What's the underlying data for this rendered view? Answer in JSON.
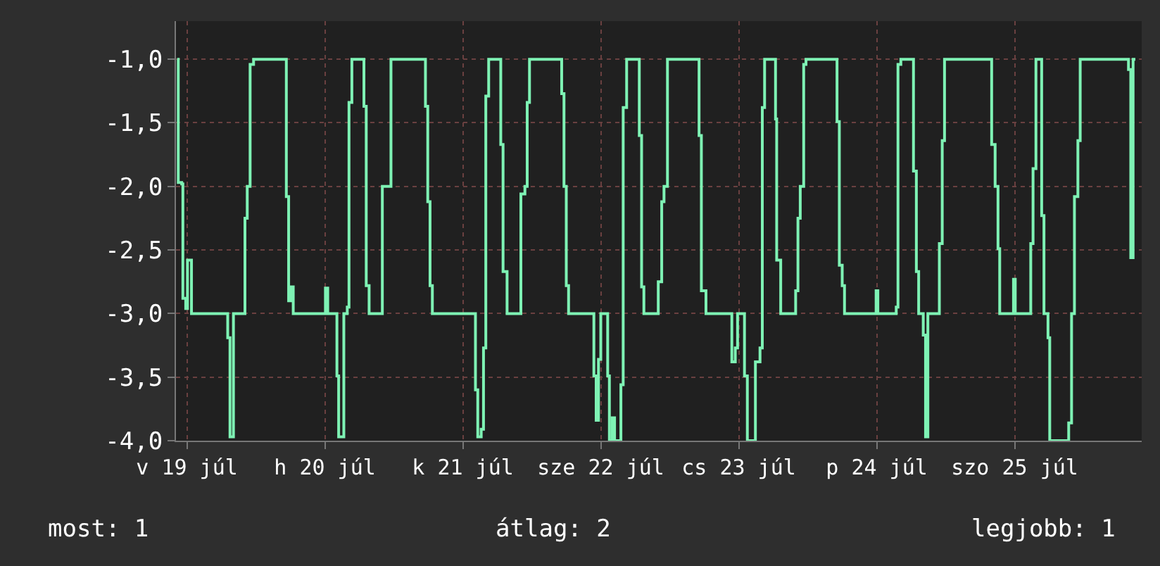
{
  "chart_data": {
    "type": "step",
    "color": "#7ef2b4",
    "line_style": "solid",
    "marker": "none",
    "grid": true,
    "legend": false,
    "x": [
      "--07-19T10:18",
      "--07-19T10:30",
      "--07-19T11:06",
      "--07-19T11:18",
      "--07-19T11:48",
      "--07-19T12:06",
      "--07-19T12:36",
      "--07-19T12:48",
      "--07-19T18:42",
      "--07-19T19:06",
      "--07-19T19:30",
      "--07-19T20:06",
      "--07-19T21:48",
      "--07-19T22:06",
      "--07-19T22:30",
      "--07-19T23:00",
      "--07-19T23:36",
      "--07-20T04:54",
      "--07-20T05:18",
      "--07-20T05:42",
      "--07-20T06:06",
      "--07-20T06:30",
      "--07-20T11:42",
      "--07-20T12:06",
      "--07-20T12:30",
      "--07-20T13:42",
      "--07-20T14:06",
      "--07-20T14:24",
      "--07-20T15:06",
      "--07-20T15:18",
      "--07-20T15:54",
      "--07-20T16:12",
      "--07-20T16:42",
      "--07-20T18:18",
      "--07-20T18:48",
      "--07-20T19:12",
      "--07-20T19:42",
      "--07-20T21:24",
      "--07-20T22:00",
      "--07-20T22:48",
      "--07-20T23:30",
      "--07-21T05:06",
      "--07-21T05:30",
      "--07-21T05:54",
      "--07-21T06:18",
      "--07-21T06:42",
      "--07-21T13:48",
      "--07-21T14:12",
      "--07-21T14:36",
      "--07-21T15:12",
      "--07-21T15:36",
      "--07-21T16:00",
      "--07-21T16:30",
      "--07-21T18:12",
      "--07-21T18:36",
      "--07-21T19:00",
      "--07-21T19:42",
      "--07-21T22:00",
      "--07-21T22:06",
      "--07-21T22:48",
      "--07-21T23:12",
      "--07-21T23:36",
      "--07-22T04:36",
      "--07-22T05:12",
      "--07-22T05:36",
      "--07-22T06:00",
      "--07-22T06:24",
      "--07-22T10:24",
      "--07-22T10:48",
      "--07-22T11:12",
      "--07-22T11:36",
      "--07-22T12:00",
      "--07-22T12:48",
      "--07-22T13:12",
      "--07-22T13:30",
      "--07-22T14:00",
      "--07-22T14:24",
      "--07-22T15:00",
      "--07-22T15:30",
      "--07-22T15:54",
      "--07-22T16:30",
      "--07-22T18:18",
      "--07-22T18:42",
      "--07-22T19:06",
      "--07-22T19:30",
      "--07-22T21:24",
      "--07-22T22:00",
      "--07-22T22:36",
      "--07-22T23:00",
      "--07-22T23:36",
      "--07-23T04:42",
      "--07-23T05:06",
      "--07-23T05:30",
      "--07-23T06:18",
      "--07-23T10:36",
      "--07-23T10:48",
      "--07-23T11:24",
      "--07-23T11:48",
      "--07-23T12:42",
      "--07-23T13:00",
      "--07-23T13:30",
      "--07-23T14:18",
      "--07-23T14:54",
      "--07-23T15:42",
      "--07-23T16:06",
      "--07-23T16:30",
      "--07-23T18:12",
      "--07-23T18:24",
      "--07-23T18:36",
      "--07-23T19:00",
      "--07-23T19:18",
      "--07-23T21:36",
      "--07-23T21:54",
      "--07-23T22:18",
      "--07-23T22:42",
      "--07-23T23:18",
      "--07-23T23:42",
      "--07-24T04:36",
      "--07-24T05:06",
      "--07-24T05:30",
      "--07-24T06:00",
      "--07-24T06:24",
      "--07-24T11:36",
      "--07-24T11:54",
      "--07-24T12:12",
      "--07-24T15:00",
      "--07-24T15:24",
      "--07-24T15:42",
      "--07-24T16:12",
      "--07-24T18:00",
      "--07-24T18:24",
      "--07-24T18:54",
      "--07-24T19:18",
      "--07-24T19:42",
      "--07-24T20:06",
      "--07-24T20:30",
      "--07-24T20:54",
      "--07-24T22:36",
      "--07-24T22:54",
      "--07-24T23:24",
      "--07-24T23:48",
      "--07-25T07:30",
      "--07-25T08:00",
      "--07-25T08:36",
      "--07-25T09:06",
      "--07-25T09:24",
      "--07-25T11:36",
      "--07-25T11:48",
      "--07-25T12:06",
      "--07-25T14:30",
      "--07-25T14:48",
      "--07-25T15:12",
      "--07-25T15:42",
      "--07-25T16:18",
      "--07-25T16:42",
      "--07-25T17:06",
      "--07-25T17:48",
      "--07-25T18:06",
      "--07-25T21:00",
      "--07-25T21:24",
      "--07-25T21:54",
      "--07-25T22:24",
      "--07-25T23:00",
      "--07-25T23:24",
      "--07-26T07:24",
      "--07-26T07:48",
      "--07-26T08:12",
      "--07-26T08:36",
      "--07-26T09:00"
    ],
    "values": [
      -1.0,
      -1.97,
      -1.98,
      -2.88,
      -2.96,
      -2.58,
      -2.58,
      -3.0,
      -3.0,
      -3.19,
      -3.97,
      -3.0,
      -3.0,
      -2.25,
      -2.0,
      -1.04,
      -1.0,
      -1.0,
      -2.08,
      -2.9,
      -2.79,
      -3.0,
      -3.0,
      -2.8,
      -3.0,
      -3.0,
      -3.49,
      -3.97,
      -3.97,
      -3.0,
      -2.95,
      -1.34,
      -1.0,
      -1.0,
      -1.37,
      -2.78,
      -3.0,
      -3.0,
      -2.0,
      -2.0,
      -1.0,
      -1.0,
      -1.37,
      -2.12,
      -2.78,
      -3.0,
      -3.0,
      -3.6,
      -3.97,
      -3.91,
      -3.27,
      -1.29,
      -1.0,
      -1.0,
      -1.67,
      -2.67,
      -3.0,
      -3.0,
      -2.06,
      -2.0,
      -1.34,
      -1.0,
      -1.0,
      -1.27,
      -2.0,
      -2.78,
      -3.0,
      -3.0,
      -3.49,
      -3.84,
      -3.36,
      -3.0,
      -3.0,
      -3.49,
      -4.0,
      -3.82,
      -4.0,
      -4.0,
      -3.56,
      -1.38,
      -1.0,
      -1.0,
      -1.6,
      -2.79,
      -3.0,
      -3.0,
      -2.75,
      -2.12,
      -2.0,
      -1.0,
      -1.0,
      -1.6,
      -2.82,
      -3.0,
      -3.0,
      -3.38,
      -3.27,
      -3.0,
      -3.0,
      -3.49,
      -4.0,
      -4.0,
      -3.38,
      -3.27,
      -1.38,
      -1.0,
      -1.0,
      -1.47,
      -2.58,
      -2.58,
      -3.0,
      -3.0,
      -2.82,
      -2.25,
      -2.0,
      -1.04,
      -1.0,
      -1.0,
      -1.49,
      -2.62,
      -2.78,
      -3.0,
      -3.0,
      -2.82,
      -3.0,
      -3.0,
      -2.95,
      -1.04,
      -1.0,
      -1.0,
      -1.88,
      -2.67,
      -3.0,
      -3.0,
      -3.17,
      -3.97,
      -3.0,
      -3.0,
      -2.45,
      -1.64,
      -1.0,
      -1.0,
      -1.67,
      -2.0,
      -2.49,
      -3.0,
      -3.0,
      -2.73,
      -3.0,
      -3.0,
      -2.45,
      -1.86,
      -1.0,
      -1.0,
      -2.23,
      -3.0,
      -3.19,
      -4.0,
      -4.0,
      -3.86,
      -3.0,
      -2.08,
      -1.64,
      -1.0,
      -1.0,
      -1.08,
      -2.56,
      -1.0,
      -1.0
    ],
    "xlim": [
      "--07-19T10:06",
      "--07-26T10:06"
    ],
    "xticks": [
      {
        "value": "--07-19T12:00",
        "label": "v 19 júl"
      },
      {
        "value": "--07-20T12:00",
        "label": "h 20 júl"
      },
      {
        "value": "--07-21T12:00",
        "label": "k 21 júl"
      },
      {
        "value": "--07-22T12:00",
        "label": "sze 22 júl"
      },
      {
        "value": "--07-23T12:00",
        "label": "cs 23 júl"
      },
      {
        "value": "--07-24T12:00",
        "label": "p 24 júl"
      },
      {
        "value": "--07-25T12:00",
        "label": "szo 25 júl"
      }
    ],
    "ylim": [
      -4.0,
      -0.7
    ],
    "yticks": [
      {
        "value": -1.0,
        "label": "-1,0"
      },
      {
        "value": -1.5,
        "label": "-1,5"
      },
      {
        "value": -2.0,
        "label": "-2,0"
      },
      {
        "value": -2.5,
        "label": "-2,5"
      },
      {
        "value": -3.0,
        "label": "-3,0"
      },
      {
        "value": -3.5,
        "label": "-3,5"
      },
      {
        "value": -4.0,
        "label": "-4,0"
      }
    ],
    "annotations": [
      "most: 1",
      "átlag: 2",
      "legjobb: 1"
    ]
  }
}
